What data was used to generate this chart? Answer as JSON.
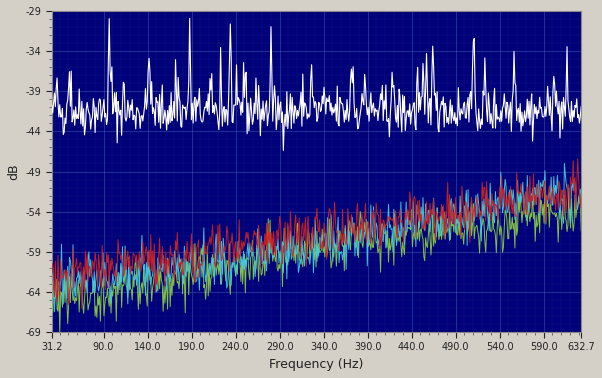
{
  "xlabel": "Frequency (Hz)",
  "ylabel": "dB",
  "fig_bg_color": "#d4d0c8",
  "plot_bg_color": "#00007A",
  "grid_color_h": "#4466AA",
  "grid_color_v": "#4466AA",
  "ylim": [
    -69,
    -29
  ],
  "xlim": [
    31.2,
    632.7
  ],
  "yticks": [
    -29,
    -34,
    -39,
    -44,
    -49,
    -54,
    -59,
    -64,
    -69
  ],
  "xticks": [
    31.2,
    90.0,
    140.0,
    190.0,
    240.0,
    290.0,
    340.0,
    390.0,
    440.0,
    490.0,
    540.0,
    590.0,
    632.7
  ],
  "xtick_labels": [
    "31.2",
    "90.0",
    "140.0",
    "190.0",
    "240.0",
    "290.0",
    "340.0",
    "390.0",
    "440.0",
    "490.0",
    "540.0",
    "590.0",
    "632.7"
  ],
  "line_colors": [
    "white",
    "#CC2222",
    "#44CCDD",
    "#88CC44"
  ],
  "tick_color": "#222222",
  "label_color": "#222222",
  "seed": 42,
  "n_points": 600
}
